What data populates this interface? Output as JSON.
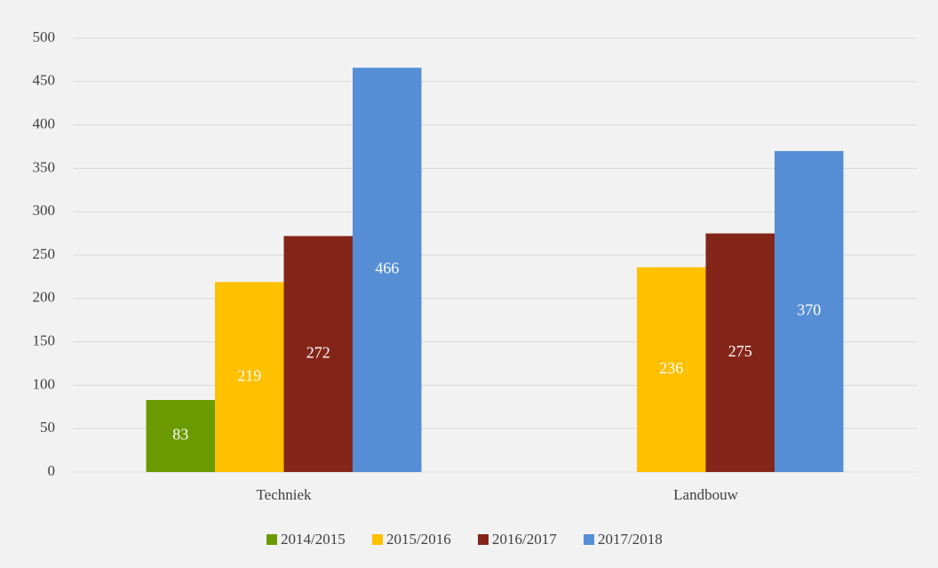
{
  "chart_data": {
    "type": "bar",
    "categories": [
      "Techniek",
      "Landbouw"
    ],
    "series": [
      {
        "name": "2014/2015",
        "color": "#6a9a00",
        "values": [
          83,
          null
        ]
      },
      {
        "name": "2015/2016",
        "color": "#ffc000",
        "values": [
          219,
          236
        ]
      },
      {
        "name": "2016/2017",
        "color": "#842519",
        "values": [
          272,
          275
        ]
      },
      {
        "name": "2017/2018",
        "color": "#558ed5",
        "values": [
          466,
          370
        ]
      }
    ],
    "ylim": [
      0,
      500
    ],
    "yticks": [
      0,
      50,
      100,
      150,
      200,
      250,
      300,
      350,
      400,
      450,
      500
    ],
    "grid": true,
    "legend": "bottom"
  }
}
